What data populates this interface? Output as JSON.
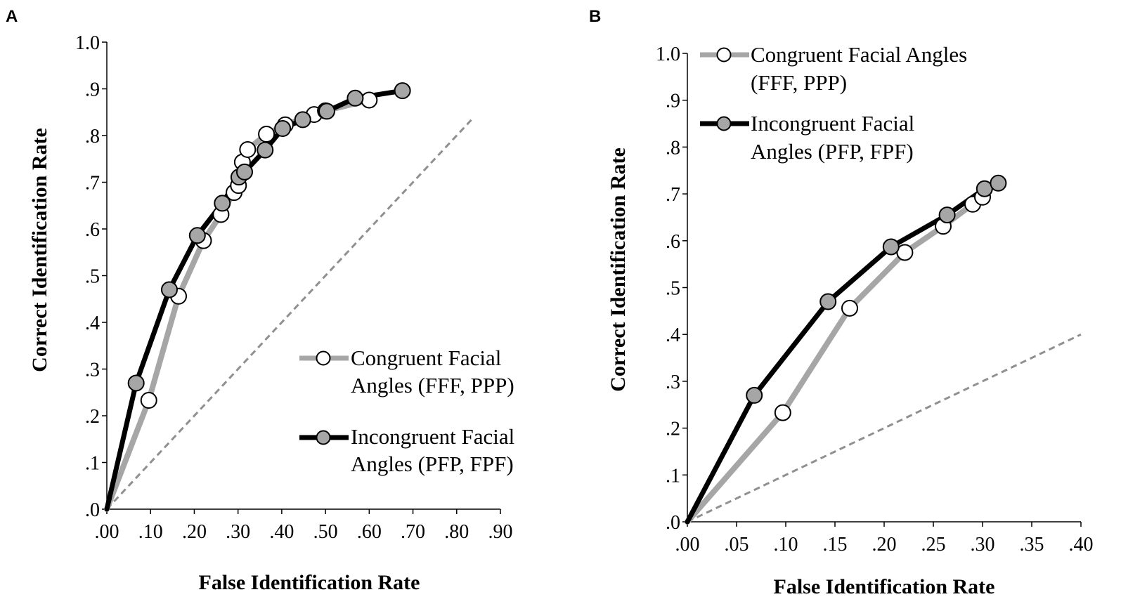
{
  "panels": [
    {
      "letter": "A"
    },
    {
      "letter": "B"
    }
  ],
  "chart_data": [
    {
      "type": "line",
      "panel": "A",
      "xlabel": "False Identification Rate",
      "ylabel": "Correct Identification Rate",
      "xlim": [
        0,
        0.9
      ],
      "ylim": [
        0,
        1.0
      ],
      "xticks": [
        ".00",
        ".10",
        ".20",
        ".30",
        ".40",
        ".50",
        ".60",
        ".70",
        ".80",
        ".90"
      ],
      "yticks": [
        ".0",
        ".1",
        ".2",
        ".3",
        ".4",
        ".5",
        ".6",
        ".7",
        ".8",
        ".9",
        "1.0"
      ],
      "legend_position": "lower-right",
      "chance_line": {
        "x": [
          0,
          0.835
        ],
        "y": [
          0,
          0.835
        ],
        "style": "dashed",
        "color": "#909090"
      },
      "series": [
        {
          "name": "Congruent Facial Angles (FFF, PPP)",
          "legend_lines": [
            "Congruent Facial",
            "Angles (FFF, PPP)"
          ],
          "line_color": "#a6a6a6",
          "marker_fill": "#ffffff",
          "points": [
            [
              0,
              0
            ],
            [
              0.096,
              0.233
            ],
            [
              0.164,
              0.456
            ],
            [
              0.221,
              0.575
            ],
            [
              0.261,
              0.631
            ],
            [
              0.291,
              0.678
            ],
            [
              0.301,
              0.693
            ],
            [
              0.31,
              0.743
            ],
            [
              0.322,
              0.77
            ],
            [
              0.365,
              0.803
            ],
            [
              0.408,
              0.823
            ],
            [
              0.474,
              0.845
            ],
            [
              0.5,
              0.853
            ],
            [
              0.6,
              0.876
            ]
          ]
        },
        {
          "name": "Incongruent Facial Angles (PFP, FPF)",
          "legend_lines": [
            "Incongruent Facial",
            "Angles (PFP, FPF)"
          ],
          "line_color": "#000000",
          "marker_fill": "#a6a6a6",
          "points": [
            [
              0,
              0
            ],
            [
              0.067,
              0.27
            ],
            [
              0.143,
              0.47
            ],
            [
              0.207,
              0.586
            ],
            [
              0.264,
              0.655
            ],
            [
              0.302,
              0.711
            ],
            [
              0.315,
              0.722
            ],
            [
              0.362,
              0.769
            ],
            [
              0.402,
              0.815
            ],
            [
              0.448,
              0.834
            ],
            [
              0.503,
              0.852
            ],
            [
              0.568,
              0.88
            ],
            [
              0.676,
              0.896
            ]
          ]
        }
      ]
    },
    {
      "type": "line",
      "panel": "B",
      "xlabel": "False Identification Rate",
      "ylabel": "Correct Identification Rate",
      "xlim": [
        0,
        0.4
      ],
      "ylim": [
        0,
        1.0
      ],
      "xticks": [
        ".00",
        ".05",
        ".10",
        ".15",
        ".20",
        ".25",
        ".30",
        ".35",
        ".40"
      ],
      "yticks": [
        ".0",
        ".1",
        ".2",
        ".3",
        ".4",
        ".5",
        ".6",
        ".7",
        ".8",
        ".9",
        "1.0"
      ],
      "legend_position": "top-left",
      "chance_line": {
        "x": [
          0,
          0.4
        ],
        "y": [
          0,
          0.4
        ],
        "style": "dashed",
        "color": "#909090"
      },
      "series": [
        {
          "name": "Congruent Facial Angles (FFF, PPP)",
          "legend_lines": [
            "Congruent Facial Angles",
            "(FFF, PPP)"
          ],
          "line_color": "#a6a6a6",
          "marker_fill": "#ffffff",
          "points": [
            [
              0,
              0
            ],
            [
              0.097,
              0.233
            ],
            [
              0.165,
              0.456
            ],
            [
              0.221,
              0.575
            ],
            [
              0.26,
              0.631
            ],
            [
              0.29,
              0.678
            ],
            [
              0.3,
              0.693
            ]
          ]
        },
        {
          "name": "Incongruent Facial Angles (PFP, FPF)",
          "legend_lines": [
            "Incongruent Facial",
            "Angles (PFP, FPF)"
          ],
          "line_color": "#000000",
          "marker_fill": "#a6a6a6",
          "points": [
            [
              0,
              0
            ],
            [
              0.068,
              0.27
            ],
            [
              0.143,
              0.47
            ],
            [
              0.207,
              0.587
            ],
            [
              0.264,
              0.655
            ],
            [
              0.302,
              0.711
            ],
            [
              0.316,
              0.723
            ]
          ]
        }
      ]
    }
  ]
}
